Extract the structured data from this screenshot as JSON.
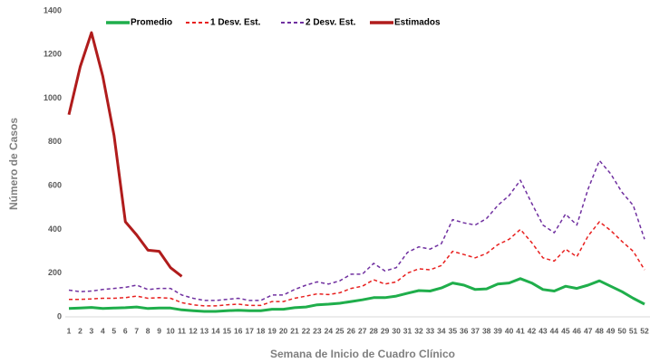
{
  "chart_data": {
    "type": "line",
    "categories": [
      "1",
      "2",
      "3",
      "4",
      "5",
      "6",
      "7",
      "8",
      "9",
      "10",
      "11",
      "12",
      "13",
      "14",
      "15",
      "16",
      "17",
      "18",
      "19",
      "20",
      "21",
      "22",
      "23",
      "24",
      "25",
      "26",
      "27",
      "28",
      "29",
      "30",
      "31",
      "32",
      "33",
      "34",
      "35",
      "36",
      "37",
      "38",
      "39",
      "40",
      "41",
      "42",
      "43",
      "44",
      "45",
      "46",
      "47",
      "48",
      "49",
      "50",
      "51",
      "52"
    ],
    "xlabel": "Semana de Inicio de Cuadro Clínico",
    "ylabel": "Número de Casos",
    "ylim": [
      0,
      1400
    ],
    "yticks": [
      0,
      200,
      400,
      600,
      800,
      1000,
      1200,
      1400
    ],
    "series": [
      {
        "name": "Promedio",
        "color": "#1fae4b",
        "dash": false,
        "width": 3,
        "values": [
          38,
          40,
          43,
          38,
          40,
          42,
          45,
          38,
          40,
          40,
          32,
          28,
          25,
          25,
          28,
          30,
          28,
          28,
          35,
          35,
          42,
          45,
          55,
          58,
          62,
          70,
          78,
          88,
          88,
          95,
          108,
          120,
          118,
          132,
          155,
          145,
          125,
          128,
          150,
          155,
          175,
          155,
          125,
          118,
          140,
          130,
          145,
          165,
          140,
          115,
          85,
          58
        ]
      },
      {
        "name": "1 Desv. Est.",
        "color": "#e8201f",
        "dash": true,
        "width": 1.5,
        "values": [
          80,
          80,
          82,
          85,
          85,
          88,
          95,
          85,
          88,
          85,
          65,
          55,
          50,
          50,
          55,
          58,
          52,
          52,
          70,
          70,
          85,
          95,
          105,
          102,
          110,
          130,
          140,
          170,
          150,
          160,
          200,
          220,
          215,
          235,
          300,
          285,
          270,
          290,
          330,
          355,
          400,
          340,
          270,
          255,
          310,
          275,
          370,
          435,
          395,
          345,
          300,
          215
        ]
      },
      {
        "name": "2 Desv. Est.",
        "color": "#7030a0",
        "dash": true,
        "width": 1.5,
        "values": [
          122,
          115,
          118,
          125,
          130,
          135,
          145,
          125,
          130,
          130,
          100,
          85,
          75,
          75,
          80,
          85,
          75,
          75,
          100,
          100,
          125,
          145,
          160,
          150,
          165,
          195,
          195,
          245,
          210,
          225,
          295,
          320,
          310,
          335,
          445,
          430,
          420,
          450,
          510,
          555,
          625,
          520,
          420,
          385,
          470,
          420,
          585,
          715,
          655,
          570,
          510,
          355
        ]
      },
      {
        "name": "Estimados",
        "color": "#b01c1c",
        "dash": false,
        "width": 3,
        "values": [
          925,
          1145,
          1300,
          1100,
          830,
          435,
          375,
          305,
          300,
          225,
          185,
          null,
          null,
          null,
          null,
          null,
          null,
          null,
          null,
          null,
          null,
          null,
          null,
          null,
          null,
          null,
          null,
          null,
          null,
          null,
          null,
          null,
          null,
          null,
          null,
          null,
          null,
          null,
          null,
          null,
          null,
          null,
          null,
          null,
          null,
          null,
          null,
          null,
          null,
          null,
          null,
          null
        ]
      }
    ]
  }
}
